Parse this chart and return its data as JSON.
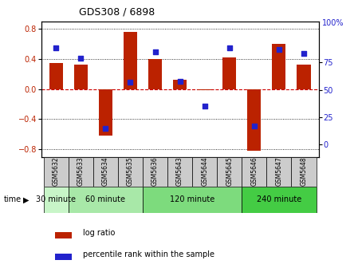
{
  "title": "GDS308 / 6898",
  "samples": [
    "GSM5632",
    "GSM5633",
    "GSM5634",
    "GSM5635",
    "GSM5636",
    "GSM5643",
    "GSM5644",
    "GSM5645",
    "GSM5646",
    "GSM5647",
    "GSM5648"
  ],
  "log_ratios": [
    0.35,
    0.33,
    -0.62,
    0.76,
    0.4,
    0.12,
    -0.01,
    0.42,
    -0.82,
    0.6,
    0.33
  ],
  "percentile_ranks": [
    88,
    79,
    15,
    57,
    85,
    58,
    35,
    88,
    17,
    87,
    83
  ],
  "groups": [
    {
      "label": "30 minute",
      "indices": [
        0
      ],
      "color": "#c8f5c8"
    },
    {
      "label": "60 minute",
      "indices": [
        1,
        2,
        3
      ],
      "color": "#a8e8a8"
    },
    {
      "label": "120 minute",
      "indices": [
        4,
        5,
        6,
        7
      ],
      "color": "#7ddb7d"
    },
    {
      "label": "240 minute",
      "indices": [
        8,
        9,
        10
      ],
      "color": "#44cc44"
    }
  ],
  "bar_color": "#bb2200",
  "dot_color": "#2222cc",
  "ylim_left": [
    -0.9,
    0.9
  ],
  "ylim_right": [
    -11.25,
    112.5
  ],
  "yticks_left": [
    -0.8,
    -0.4,
    0.0,
    0.4,
    0.8
  ],
  "yticks_right": [
    0,
    25,
    50,
    75
  ],
  "zero_line_color": "#cc0000",
  "sample_box_color": "#cccccc",
  "bar_width": 0.55
}
